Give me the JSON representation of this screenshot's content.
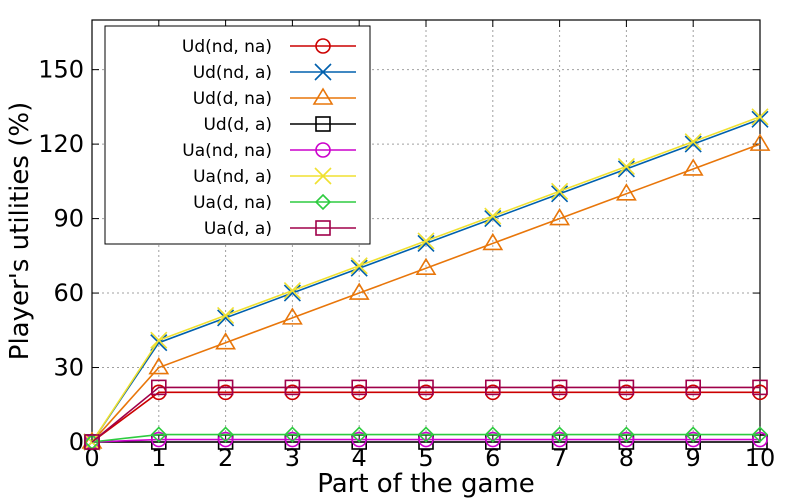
{
  "chart_data": {
    "type": "line",
    "xlabel": "Part of the game",
    "ylabel": "Player's utilities (%)",
    "xlim": [
      0,
      10
    ],
    "ylim": [
      0,
      170
    ],
    "xticks": [
      "0",
      "1",
      "2",
      "3",
      "4",
      "5",
      "6",
      "7",
      "8",
      "9",
      "10"
    ],
    "yticks": [
      "0",
      "30",
      "60",
      "90",
      "120",
      "150"
    ],
    "ytick_values": [
      0,
      30,
      60,
      90,
      120,
      150
    ],
    "grid": true,
    "legend_position": "top-left",
    "x": [
      0,
      1,
      2,
      3,
      4,
      5,
      6,
      7,
      8,
      9,
      10
    ],
    "series": [
      {
        "name": "Ud(nd, na)",
        "color": "#cc0000",
        "marker": "circle",
        "values": [
          0,
          20,
          20,
          20,
          20,
          20,
          20,
          20,
          20,
          20,
          20
        ]
      },
      {
        "name": "Ud(nd, a)",
        "color": "#0060ad",
        "marker": "x",
        "values": [
          0,
          40,
          50,
          60,
          70,
          80,
          90,
          100,
          110,
          120,
          130
        ]
      },
      {
        "name": "Ud(d, na)",
        "color": "#e8760a",
        "marker": "triangle",
        "values": [
          0,
          30,
          40,
          50,
          60,
          70,
          80,
          90,
          100,
          110,
          120
        ]
      },
      {
        "name": "Ud(d, a)",
        "color": "#000000",
        "marker": "square",
        "values": [
          0,
          0,
          0,
          0,
          0,
          0,
          0,
          0,
          0,
          0,
          0
        ]
      },
      {
        "name": "Ua(nd, na)",
        "color": "#cc00cc",
        "marker": "circle",
        "values": [
          0,
          1,
          1,
          1,
          1,
          1,
          1,
          1,
          1,
          1,
          1
        ]
      },
      {
        "name": "Ua(nd, a)",
        "color": "#f0e130",
        "marker": "x",
        "values": [
          0,
          41,
          51,
          61,
          71,
          81,
          91,
          101,
          111,
          121,
          131
        ]
      },
      {
        "name": "Ua(d, na)",
        "color": "#2ecc40",
        "marker": "diamond",
        "values": [
          0,
          3,
          3,
          3,
          3,
          3,
          3,
          3,
          3,
          3,
          3
        ]
      },
      {
        "name": "Ua(d, a)",
        "color": "#a0004a",
        "marker": "square",
        "values": [
          0,
          22,
          22,
          22,
          22,
          22,
          22,
          22,
          22,
          22,
          22
        ]
      }
    ]
  }
}
